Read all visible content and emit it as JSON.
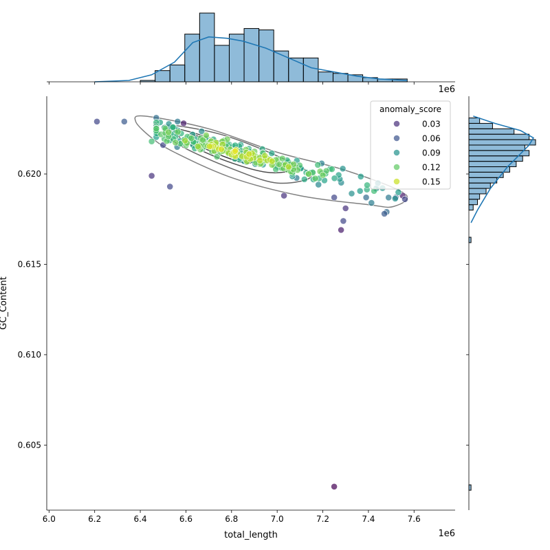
{
  "chart_data": {
    "type": "scatter",
    "xlabel": "total_length",
    "ylabel": "GC_Content",
    "x_offset_label": "1e6",
    "xlim": [
      5990000,
      7780000
    ],
    "ylim": [
      0.6014,
      0.6243
    ],
    "x_ticks": [
      6000000,
      6200000,
      6400000,
      6600000,
      6800000,
      7000000,
      7200000,
      7400000,
      7600000
    ],
    "x_tick_labels": [
      "6.0",
      "6.2",
      "6.4",
      "6.6",
      "6.8",
      "7.0",
      "7.2",
      "7.4",
      "7.6"
    ],
    "y_ticks": [
      0.605,
      0.61,
      0.615,
      0.62
    ],
    "y_tick_labels": [
      "0.605",
      "0.610",
      "0.615",
      "0.620"
    ],
    "legend": {
      "title": "anomaly_score",
      "position": "top-right",
      "entries": [
        {
          "label": "0.03",
          "color": "#472d7b"
        },
        {
          "label": "0.06",
          "color": "#3b528b"
        },
        {
          "label": "0.09",
          "color": "#21918c"
        },
        {
          "label": "0.12",
          "color": "#5ec962"
        },
        {
          "label": "0.15",
          "color": "#c8e020"
        }
      ]
    },
    "colormap": "viridis",
    "marker_alpha": 0.7,
    "outliers": [
      {
        "x": 6210000,
        "y": 0.6229,
        "score": 0.05
      },
      {
        "x": 6330000,
        "y": 0.6229,
        "score": 0.06
      },
      {
        "x": 6450000,
        "y": 0.6199,
        "score": 0.04
      },
      {
        "x": 6530000,
        "y": 0.6193,
        "score": 0.05
      },
      {
        "x": 6500000,
        "y": 0.6216,
        "score": 0.05
      },
      {
        "x": 6450000,
        "y": 0.6218,
        "score": 0.12
      },
      {
        "x": 6470000,
        "y": 0.6227,
        "score": 0.03
      },
      {
        "x": 6590000,
        "y": 0.6228,
        "score": 0.03
      },
      {
        "x": 7280000,
        "y": 0.6169,
        "score": 0.03
      },
      {
        "x": 7290000,
        "y": 0.6174,
        "score": 0.05
      },
      {
        "x": 7300000,
        "y": 0.6181,
        "score": 0.04
      },
      {
        "x": 7250000,
        "y": 0.6027,
        "score": 0.02
      },
      {
        "x": 7470000,
        "y": 0.6178,
        "score": 0.06
      },
      {
        "x": 7480000,
        "y": 0.6179,
        "score": 0.07
      },
      {
        "x": 7560000,
        "y": 0.6186,
        "score": 0.05
      },
      {
        "x": 7550000,
        "y": 0.6188,
        "score": 0.03
      },
      {
        "x": 7520000,
        "y": 0.6187,
        "score": 0.06
      },
      {
        "x": 7030000,
        "y": 0.6188,
        "score": 0.04
      },
      {
        "x": 7250000,
        "y": 0.6187,
        "score": 0.05
      },
      {
        "x": 7390000,
        "y": 0.6187,
        "score": 0.07
      }
    ],
    "main_cluster": {
      "n_points": 300,
      "x_range": [
        6470000,
        7550000
      ],
      "y_at_x_start": 0.6224,
      "y_at_x_end": 0.6187,
      "y_spread": 0.0005,
      "score_range": [
        0.03,
        0.16
      ],
      "dense_region_score": 0.14
    },
    "kde_contours": [
      {
        "level": "outer",
        "color": "#808080",
        "path_points": [
          [
            6420000,
            0.6232
          ],
          [
            6700000,
            0.6225
          ],
          [
            7000000,
            0.6212
          ],
          [
            7300000,
            0.6202
          ],
          [
            7560000,
            0.6189
          ],
          [
            7510000,
            0.6182
          ],
          [
            7400000,
            0.6183
          ],
          [
            7100000,
            0.6188
          ],
          [
            6800000,
            0.6198
          ],
          [
            6550000,
            0.6212
          ],
          [
            6450000,
            0.622
          ],
          [
            6380000,
            0.6229
          ]
        ]
      },
      {
        "level": "2",
        "color": "#666666",
        "path_points": [
          [
            6520000,
            0.6227
          ],
          [
            6750000,
            0.6222
          ],
          [
            7000000,
            0.621
          ],
          [
            7150000,
            0.6199
          ],
          [
            7000000,
            0.6195
          ],
          [
            6800000,
            0.6203
          ],
          [
            6600000,
            0.6214
          ],
          [
            6510000,
            0.6222
          ]
        ]
      },
      {
        "level": "3",
        "color": "#4d4d4d",
        "path_points": [
          [
            6560000,
            0.6225
          ],
          [
            6750000,
            0.6218
          ],
          [
            6950000,
            0.6207
          ],
          [
            7050000,
            0.6202
          ],
          [
            6950000,
            0.6201
          ],
          [
            6780000,
            0.6207
          ],
          [
            6620000,
            0.6216
          ],
          [
            6560000,
            0.6222
          ]
        ]
      },
      {
        "level": "4",
        "color": "#333333",
        "path_points": [
          [
            6620000,
            0.6222
          ],
          [
            6760000,
            0.6216
          ],
          [
            6900000,
            0.6209
          ],
          [
            6860000,
            0.6206
          ],
          [
            6740000,
            0.6211
          ],
          [
            6640000,
            0.6217
          ]
        ]
      }
    ],
    "top_histogram": {
      "bin_edges": [
        6400000,
        6465000,
        6530000,
        6595000,
        6660000,
        6725000,
        6790000,
        6855000,
        6920000,
        6985000,
        7050000,
        7115000,
        7180000,
        7245000,
        7310000,
        7375000,
        7440000,
        7505000,
        7570000
      ],
      "counts": [
        1,
        8,
        12,
        34,
        49,
        26,
        34,
        38,
        37,
        22,
        17,
        17,
        7,
        6,
        5,
        3,
        2,
        2
      ],
      "fill": "#1f77b4",
      "kde_x": [
        6200000,
        6350000,
        6450000,
        6550000,
        6630000,
        6700000,
        6780000,
        6850000,
        6950000,
        7050000,
        7150000,
        7250000,
        7350000,
        7450000,
        7570000
      ],
      "kde_y": [
        0,
        1,
        5,
        14,
        28,
        32,
        31,
        29,
        24,
        17,
        10,
        7,
        4,
        2,
        1
      ]
    },
    "right_histogram": {
      "bin_edges": [
        0.618,
        0.6183,
        0.6186,
        0.6189,
        0.6192,
        0.6195,
        0.6198,
        0.6201,
        0.6204,
        0.6207,
        0.621,
        0.6213,
        0.6216,
        0.6219,
        0.6222,
        0.6225,
        0.6228,
        0.6231
      ],
      "counts": [
        2,
        4,
        5,
        8,
        10,
        13,
        16,
        19,
        22,
        25,
        28,
        26,
        31,
        28,
        21,
        11,
        5
      ],
      "extra_bins": [
        {
          "y0": 0.6162,
          "y1": 0.6165,
          "count": 1
        },
        {
          "y0": 0.6025,
          "y1": 0.6028,
          "count": 1
        }
      ],
      "fill": "#1f77b4",
      "kde_y": [
        0.6173,
        0.618,
        0.6186,
        0.6192,
        0.6198,
        0.6204,
        0.621,
        0.6216,
        0.622,
        0.6224,
        0.6228,
        0.6232
      ],
      "kde_x": [
        1,
        4,
        7,
        10,
        14,
        18,
        23,
        28,
        30,
        24,
        12,
        2
      ]
    }
  }
}
